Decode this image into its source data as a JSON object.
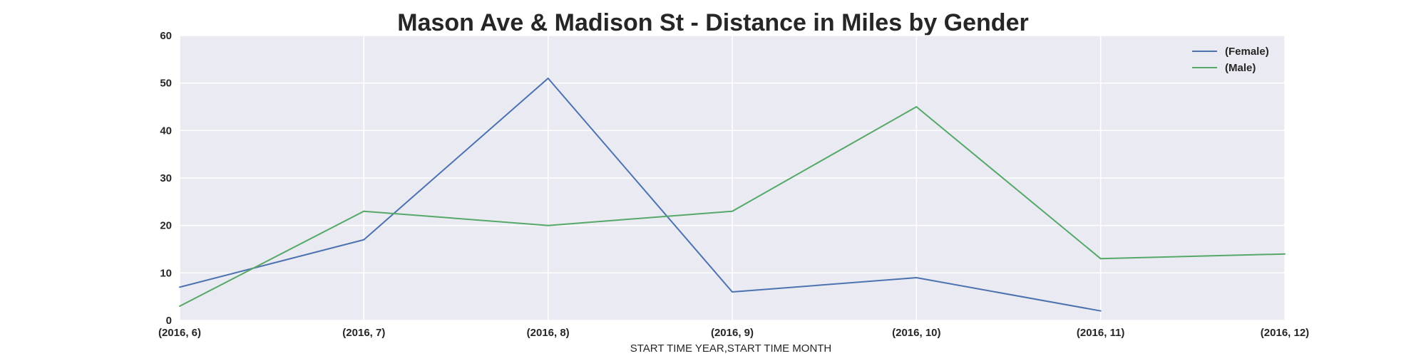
{
  "chart_data": {
    "type": "line",
    "title": "Mason Ave & Madison St - Distance in Miles by Gender",
    "xlabel": "START TIME YEAR,START TIME MONTH",
    "ylabel": "",
    "categories": [
      "(2016, 6)",
      "(2016, 7)",
      "(2016, 8)",
      "(2016, 9)",
      "(2016, 10)",
      "(2016, 11)",
      "(2016, 12)"
    ],
    "ylim": [
      0,
      60
    ],
    "yticks": [
      "0",
      "10",
      "20",
      "30",
      "40",
      "50",
      "60"
    ],
    "grid": true,
    "legend_position": "top-right",
    "background": "#EAEAF2",
    "series": [
      {
        "name": "(Female)",
        "color": "#4C72B0",
        "values": [
          7,
          17,
          51,
          6,
          9,
          2,
          null
        ]
      },
      {
        "name": "(Male)",
        "color": "#55A868",
        "values": [
          3,
          23,
          20,
          23,
          45,
          13,
          14
        ]
      }
    ]
  }
}
